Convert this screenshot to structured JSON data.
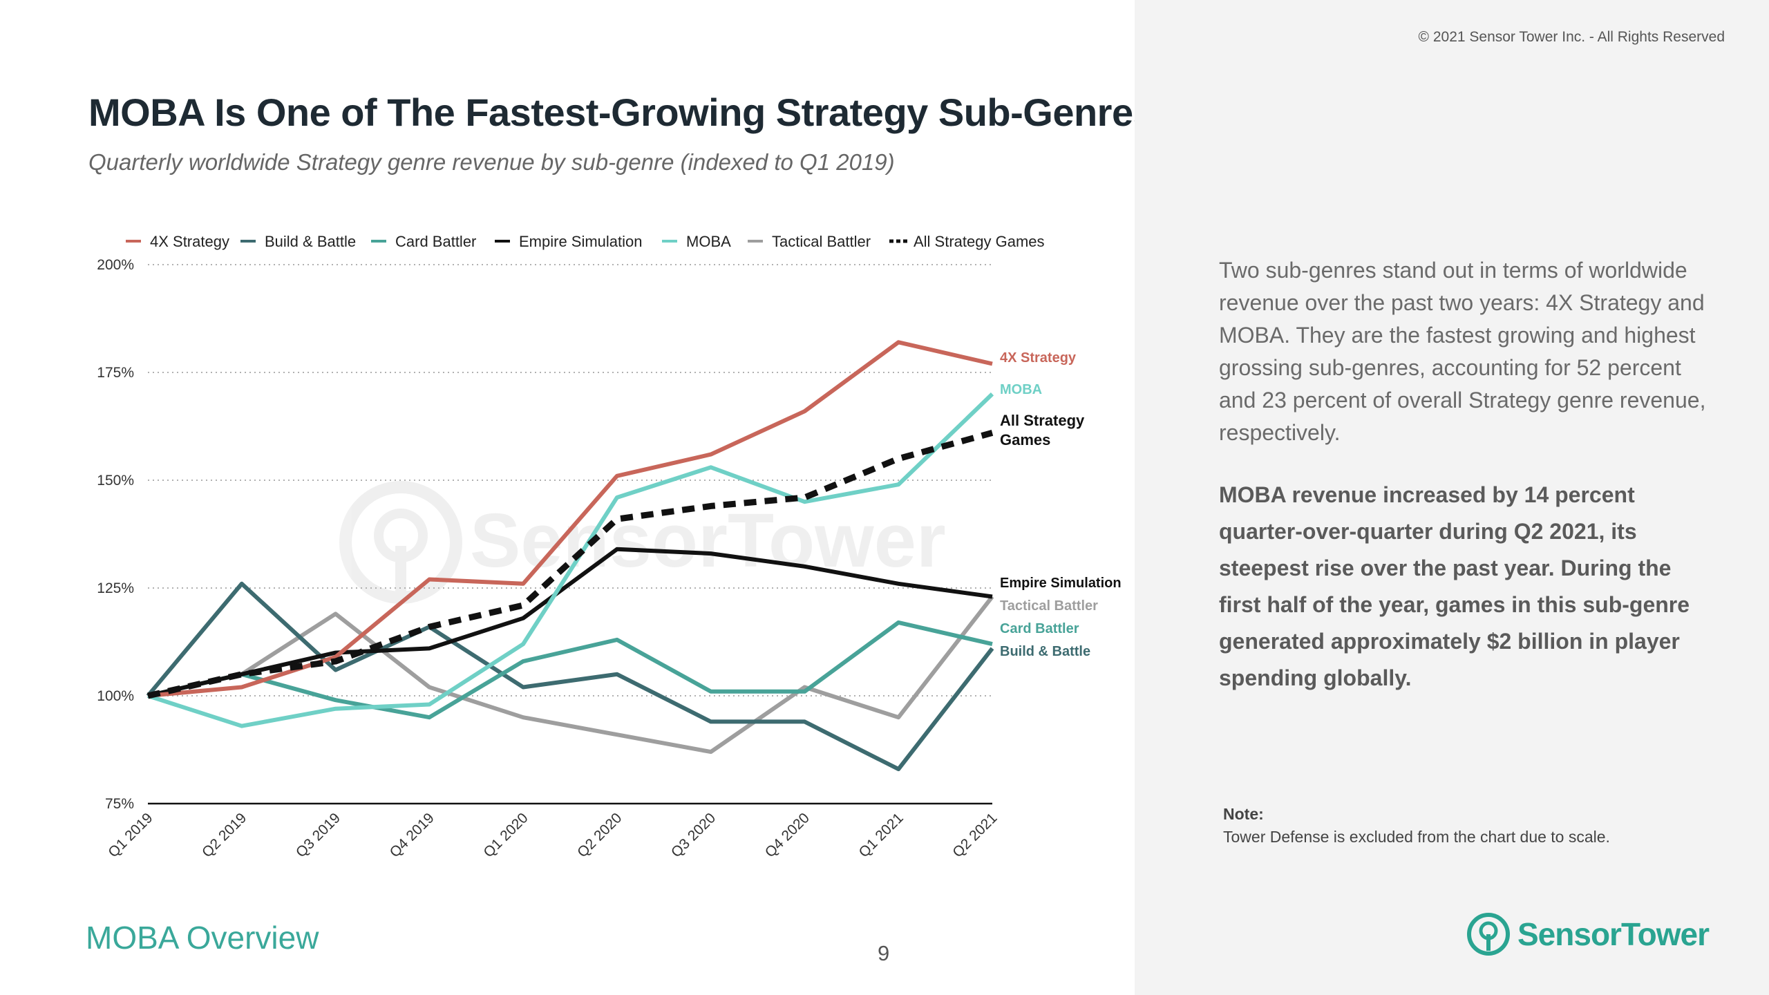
{
  "header": {
    "copyright": "© 2021 Sensor Tower Inc. - All Rights Reserved",
    "title": "MOBA Is One of The Fastest-Growing Strategy Sub-Genres",
    "subtitle": "Quarterly worldwide Strategy genre revenue by sub-genre (indexed to Q1 2019)"
  },
  "footer": {
    "section": "MOBA Overview",
    "page_number": "9",
    "brand": "SensorTower"
  },
  "sidebar": {
    "paragraph1": "Two sub-genres stand out in terms of worldwide revenue over the past two years: 4X Strategy and MOBA. They are the fastest growing and highest grossing sub-genres, accounting for 52 percent and 23 percent of overall Strategy genre revenue, respectively.",
    "paragraph2": "MOBA revenue increased by 14 percent quarter-over-quarter during Q2 2021, its steepest rise over the past year. During the first half of the year, games in this sub-genre generated approximately $2 billion in player spending globally.",
    "note_label": "Note:",
    "note_text": "Tower Defense is excluded from the chart due to scale."
  },
  "chart_data": {
    "type": "line",
    "title": "",
    "xlabel": "",
    "ylabel": "",
    "x": [
      "Q1 2019",
      "Q2 2019",
      "Q3 2019",
      "Q4 2019",
      "Q1 2020",
      "Q2 2020",
      "Q3 2020",
      "Q4 2020",
      "Q1 2021",
      "Q2 2021"
    ],
    "ylim": [
      75,
      200
    ],
    "yticks": [
      {
        "value": 75,
        "label": "75%"
      },
      {
        "value": 100,
        "label": "100%"
      },
      {
        "value": 125,
        "label": "125%"
      },
      {
        "value": 150,
        "label": "150%"
      },
      {
        "value": 175,
        "label": "175%"
      },
      {
        "value": 200,
        "label": "200%"
      }
    ],
    "grid": true,
    "legend_position": "top",
    "series": [
      {
        "name": "4X Strategy",
        "color": "#c8665a",
        "dashed": false,
        "end_label": "4X Strategy",
        "values": [
          100,
          102,
          109,
          127,
          126,
          151,
          156,
          166,
          182,
          177
        ]
      },
      {
        "name": "Build & Battle",
        "color": "#3d6b70",
        "dashed": false,
        "end_label": "Build & Battle",
        "values": [
          100,
          126,
          106,
          116,
          102,
          105,
          94,
          94,
          83,
          111
        ]
      },
      {
        "name": "Card Battler",
        "color": "#48a398",
        "dashed": false,
        "end_label": "Card Battler",
        "values": [
          100,
          105,
          99,
          95,
          108,
          113,
          101,
          101,
          117,
          112
        ]
      },
      {
        "name": "Empire Simulation",
        "color": "#111111",
        "dashed": false,
        "end_label": "Empire Simulation",
        "values": [
          100,
          105,
          110,
          111,
          118,
          134,
          133,
          130,
          126,
          123
        ]
      },
      {
        "name": "MOBA",
        "color": "#6fd0c6",
        "dashed": false,
        "end_label": "MOBA",
        "values": [
          100,
          93,
          97,
          98,
          112,
          146,
          153,
          145,
          149,
          170
        ]
      },
      {
        "name": "Tactical Battler",
        "color": "#9e9e9e",
        "dashed": false,
        "end_label": "Tactical Battler",
        "values": [
          100,
          105,
          119,
          102,
          95,
          91,
          87,
          102,
          95,
          123
        ]
      },
      {
        "name": "All Strategy Games",
        "color": "#111111",
        "dashed": true,
        "end_label": "All Strategy Games",
        "values": [
          100,
          105,
          108,
          116,
          121,
          141,
          144,
          146,
          155,
          161
        ]
      }
    ],
    "end_label_styles": [
      {
        "series": "4X Strategy",
        "color": "#c8665a"
      },
      {
        "series": "MOBA",
        "color": "#6fd0c6"
      },
      {
        "series": "All Strategy Games",
        "color": "#111111"
      },
      {
        "series": "Empire Simulation",
        "color": "#111111"
      },
      {
        "series": "Tactical Battler",
        "color": "#9e9e9e"
      },
      {
        "series": "Card Battler",
        "color": "#48a398"
      },
      {
        "series": "Build & Battle",
        "color": "#3d6b70"
      }
    ]
  }
}
